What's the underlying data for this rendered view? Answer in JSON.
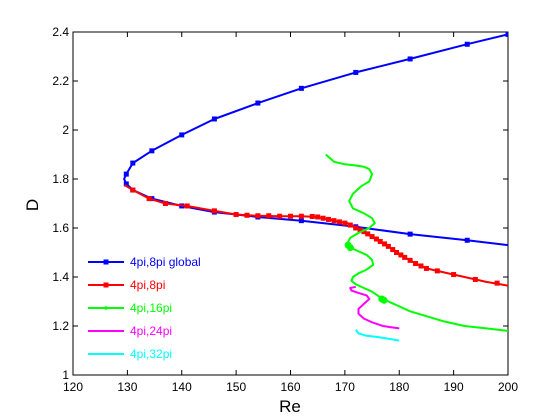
{
  "chart_data": {
    "type": "line",
    "xlabel": "Re",
    "ylabel": "D",
    "xlim": [
      120,
      200
    ],
    "ylim": [
      1,
      2.4
    ],
    "xticks": [
      "120",
      "130",
      "140",
      "150",
      "160",
      "170",
      "180",
      "190",
      "200"
    ],
    "yticks": [
      "1",
      "1.2",
      "1.4",
      "1.6",
      "1.8",
      "2",
      "2.2",
      "2.4"
    ],
    "grid": false,
    "legend_position": "bottom-left",
    "series": [
      {
        "name": "4pi,8pi global",
        "color": "#0000ff",
        "marker": "square",
        "points": [
          [
            200,
            2.39
          ],
          [
            192.5,
            2.35
          ],
          [
            182,
            2.29
          ],
          [
            172,
            2.235
          ],
          [
            162,
            2.17
          ],
          [
            154,
            2.11
          ],
          [
            146,
            2.045
          ],
          [
            140,
            1.98
          ],
          [
            134.5,
            1.915
          ],
          [
            131,
            1.865
          ],
          [
            129.8,
            1.82
          ],
          [
            129.4,
            1.8
          ],
          [
            129.8,
            1.78
          ],
          [
            131,
            1.755
          ],
          [
            134.5,
            1.72
          ],
          [
            140,
            1.69
          ],
          [
            146,
            1.665
          ],
          [
            154,
            1.645
          ],
          [
            162,
            1.63
          ],
          [
            172,
            1.605
          ],
          [
            182,
            1.575
          ],
          [
            192.5,
            1.55
          ],
          [
            200,
            1.53
          ]
        ],
        "marker_points": [
          [
            200,
            2.39
          ],
          [
            192.5,
            2.35
          ],
          [
            182,
            2.29
          ],
          [
            172,
            2.235
          ],
          [
            162,
            2.17
          ],
          [
            154,
            2.11
          ],
          [
            146,
            2.045
          ],
          [
            140,
            1.98
          ],
          [
            134.5,
            1.915
          ],
          [
            131,
            1.865
          ],
          [
            129.8,
            1.82
          ],
          [
            129.8,
            1.78
          ],
          [
            131,
            1.755
          ],
          [
            134.5,
            1.72
          ],
          [
            140,
            1.69
          ],
          [
            146,
            1.665
          ],
          [
            154,
            1.645
          ],
          [
            162,
            1.63
          ],
          [
            172,
            1.605
          ],
          [
            182,
            1.575
          ],
          [
            192.5,
            1.55
          ]
        ]
      },
      {
        "name": "4pi,8pi",
        "color": "#ff0000",
        "marker": "square",
        "points": [
          [
            129.5,
            1.775
          ],
          [
            131,
            1.755
          ],
          [
            134,
            1.72
          ],
          [
            137,
            1.7
          ],
          [
            141,
            1.69
          ],
          [
            146,
            1.67
          ],
          [
            150,
            1.655
          ],
          [
            154,
            1.65
          ],
          [
            158,
            1.648
          ],
          [
            162,
            1.648
          ],
          [
            165,
            1.645
          ],
          [
            167,
            1.635
          ],
          [
            169,
            1.625
          ],
          [
            170.5,
            1.62
          ],
          [
            172,
            1.6
          ],
          [
            173.5,
            1.585
          ],
          [
            175,
            1.565
          ],
          [
            176.5,
            1.545
          ],
          [
            178,
            1.525
          ],
          [
            179.5,
            1.5
          ],
          [
            181,
            1.48
          ],
          [
            183,
            1.455
          ],
          [
            185,
            1.435
          ],
          [
            188,
            1.42
          ],
          [
            192,
            1.4
          ],
          [
            196,
            1.38
          ],
          [
            200,
            1.365
          ]
        ],
        "marker_points": [
          [
            131,
            1.755
          ],
          [
            134,
            1.72
          ],
          [
            137,
            1.7
          ],
          [
            141,
            1.69
          ],
          [
            146,
            1.67
          ],
          [
            150,
            1.655
          ],
          [
            152,
            1.652
          ],
          [
            154,
            1.65
          ],
          [
            156,
            1.65
          ],
          [
            158,
            1.648
          ],
          [
            160,
            1.648
          ],
          [
            162,
            1.648
          ],
          [
            164,
            1.647
          ],
          [
            165,
            1.645
          ],
          [
            166,
            1.64
          ],
          [
            167,
            1.635
          ],
          [
            168,
            1.63
          ],
          [
            169,
            1.625
          ],
          [
            170,
            1.62
          ],
          [
            171,
            1.612
          ],
          [
            172,
            1.6
          ],
          [
            172.8,
            1.592
          ],
          [
            173.5,
            1.585
          ],
          [
            174.2,
            1.576
          ],
          [
            175,
            1.565
          ],
          [
            175.8,
            1.555
          ],
          [
            176.5,
            1.545
          ],
          [
            177.3,
            1.535
          ],
          [
            178,
            1.525
          ],
          [
            178.8,
            1.512
          ],
          [
            179.5,
            1.5
          ],
          [
            180.3,
            1.49
          ],
          [
            181,
            1.48
          ],
          [
            182,
            1.468
          ],
          [
            183,
            1.455
          ],
          [
            184,
            1.445
          ],
          [
            185,
            1.435
          ],
          [
            187,
            1.425
          ],
          [
            190,
            1.41
          ],
          [
            194,
            1.39
          ],
          [
            198,
            1.375
          ]
        ]
      },
      {
        "name": "4pi,16pi",
        "color": "#00ff00",
        "marker": "point",
        "points": [
          [
            166.5,
            1.9
          ],
          [
            168,
            1.87
          ],
          [
            170,
            1.86
          ],
          [
            172,
            1.855
          ],
          [
            173.5,
            1.85
          ],
          [
            174.5,
            1.84
          ],
          [
            175,
            1.82
          ],
          [
            174.5,
            1.79
          ],
          [
            173,
            1.77
          ],
          [
            171.5,
            1.74
          ],
          [
            170.8,
            1.71
          ],
          [
            171.5,
            1.68
          ],
          [
            173.5,
            1.66
          ],
          [
            175,
            1.64
          ],
          [
            175.5,
            1.62
          ],
          [
            174.5,
            1.6
          ],
          [
            172.5,
            1.58
          ],
          [
            171,
            1.56
          ],
          [
            170.5,
            1.54
          ],
          [
            171,
            1.52
          ],
          [
            172.5,
            1.505
          ],
          [
            174,
            1.49
          ],
          [
            175,
            1.47
          ],
          [
            175.2,
            1.45
          ],
          [
            174,
            1.43
          ],
          [
            172.5,
            1.415
          ],
          [
            171.5,
            1.4
          ],
          [
            171.2,
            1.385
          ],
          [
            172,
            1.37
          ],
          [
            173.5,
            1.355
          ],
          [
            175,
            1.34
          ],
          [
            176,
            1.325
          ],
          [
            177,
            1.31
          ],
          [
            178.5,
            1.295
          ],
          [
            180,
            1.28
          ],
          [
            182,
            1.26
          ],
          [
            185,
            1.24
          ],
          [
            188,
            1.22
          ],
          [
            192,
            1.2
          ],
          [
            196,
            1.19
          ],
          [
            200,
            1.18
          ]
        ],
        "marker_points": [
          [
            170.6,
            1.53
          ],
          [
            171,
            1.52
          ],
          [
            176.8,
            1.31
          ],
          [
            177.2,
            1.305
          ]
        ]
      },
      {
        "name": "4pi,24pi",
        "color": "#ff00ff",
        "marker": "none",
        "points": [
          [
            172,
            1.36
          ],
          [
            171,
            1.355
          ],
          [
            171.2,
            1.345
          ],
          [
            172.5,
            1.335
          ],
          [
            174,
            1.325
          ],
          [
            174.5,
            1.31
          ],
          [
            173.5,
            1.29
          ],
          [
            172.5,
            1.27
          ],
          [
            172.5,
            1.25
          ],
          [
            173.5,
            1.23
          ],
          [
            175,
            1.215
          ],
          [
            177,
            1.2
          ],
          [
            178.5,
            1.195
          ],
          [
            180,
            1.19
          ]
        ]
      },
      {
        "name": "4pi,32pi",
        "color": "#00ffff",
        "marker": "none",
        "points": [
          [
            172,
            1.185
          ],
          [
            172.5,
            1.17
          ],
          [
            174,
            1.16
          ],
          [
            176,
            1.155
          ],
          [
            178,
            1.148
          ],
          [
            180,
            1.14
          ]
        ]
      }
    ]
  }
}
